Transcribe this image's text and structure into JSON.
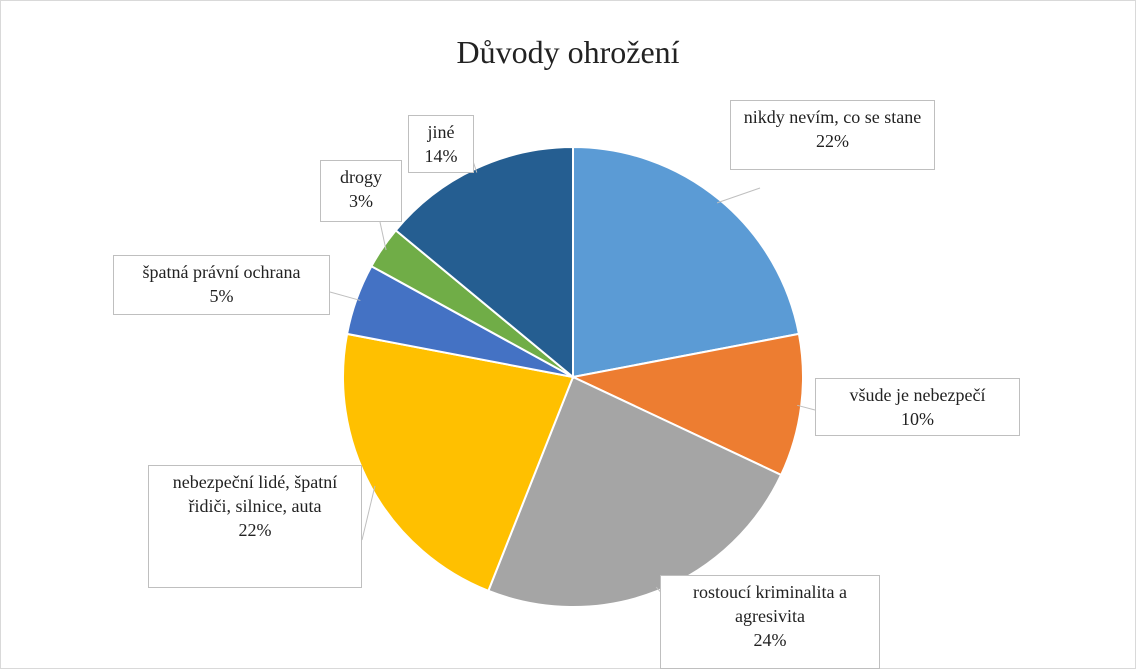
{
  "chart_data": {
    "type": "pie",
    "title": "Důvody ohrožení",
    "categories": [
      "nikdy nevím, co se stane",
      "všude je nebezpečí",
      "rostoucí kriminalita a agresivita",
      "nebezpeční lidé, špatní řidiči, silnice, auta",
      "špatná právní ochrana",
      "drogy",
      "jiné"
    ],
    "values": [
      22,
      10,
      24,
      22,
      5,
      3,
      14
    ],
    "value_labels": [
      "22%",
      "10%",
      "24%",
      "22%",
      "5%",
      "3%",
      "14%"
    ],
    "colors": [
      "#5b9bd5",
      "#ed7d31",
      "#a5a5a5",
      "#ffc000",
      "#4472c4",
      "#70ad47",
      "#255e91"
    ]
  }
}
